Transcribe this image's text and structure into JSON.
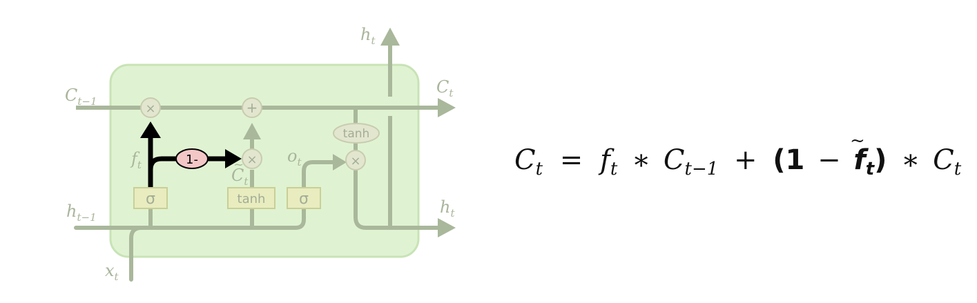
{
  "diagram": {
    "labels": {
      "c_prev": {
        "base": "C",
        "sub": "t−1"
      },
      "c_t": {
        "base": "C",
        "sub": "t"
      },
      "h_top": {
        "base": "h",
        "sub": "t"
      },
      "h_right": {
        "base": "h",
        "sub": "t"
      },
      "h_prev": {
        "base": "h",
        "sub": "t−1"
      },
      "x_t": {
        "base": "x",
        "sub": "t"
      },
      "f_t": {
        "base": "f",
        "sub": "t"
      },
      "o_t": {
        "base": "o",
        "sub": "t"
      },
      "c_tilde": {
        "base": "C",
        "sub": "t",
        "accent": "~"
      }
    },
    "gates": {
      "forget_sigma": "σ",
      "candidate_tanh": "tanh",
      "output_sigma": "σ",
      "cell_tanh": "tanh",
      "one_minus": "1-"
    },
    "ops": {
      "mult_forget": "×",
      "add_cell": "+",
      "mult_input": "×",
      "mult_output": "×"
    }
  },
  "equation": {
    "lhs": {
      "base": "C",
      "sub": "t"
    },
    "equals": "=",
    "term1_f": {
      "base": "f",
      "sub": "t"
    },
    "star1": "∗",
    "term1_c": {
      "base": "C",
      "sub": "t−1"
    },
    "plus": "+",
    "open_paren": "(",
    "one": "1",
    "minus": "−",
    "bold_f": {
      "base": "f",
      "sub": "t"
    },
    "close_paren": ")",
    "star2": "∗",
    "term2_c": {
      "base": "C",
      "sub": "t",
      "accent": "~"
    }
  },
  "colors": {
    "cell_fill": "#dff3d2",
    "cell_stroke": "#c8e3b6",
    "line": "#a9b79b",
    "gate_fill": "#e8ecbf",
    "gate_stroke": "#c9cf96",
    "highlight": "#000000",
    "one_minus_fill": "#f4c7c7"
  }
}
